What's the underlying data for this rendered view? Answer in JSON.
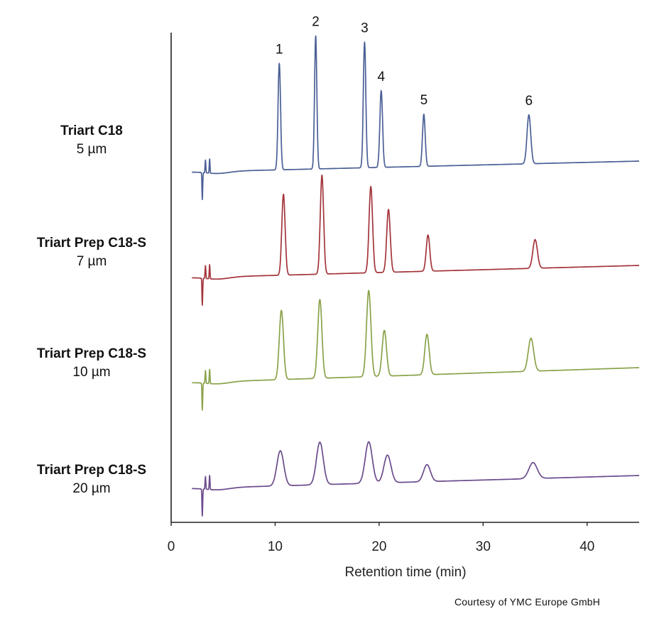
{
  "chart_data": {
    "type": "line",
    "xlabel": "Retention time (min)",
    "xlim": [
      0,
      45
    ],
    "xticks": [
      0,
      10,
      20,
      30,
      40
    ],
    "peak_labels": [
      {
        "label": "1",
        "x": 10.4
      },
      {
        "label": "2",
        "x": 13.9
      },
      {
        "label": "3",
        "x": 18.6
      },
      {
        "label": "4",
        "x": 20.2
      },
      {
        "label": "5",
        "x": 24.3
      },
      {
        "label": "6",
        "x": 34.4
      }
    ],
    "series": [
      {
        "name": "Triart C18",
        "particle_size": "5 µm",
        "color": "#4a5f96",
        "peaks": [
          {
            "x": 10.4,
            "height": 1.0,
            "width": 0.12
          },
          {
            "x": 13.9,
            "height": 1.25,
            "width": 0.11
          },
          {
            "x": 18.6,
            "height": 1.18,
            "width": 0.12
          },
          {
            "x": 20.2,
            "height": 0.72,
            "width": 0.13
          },
          {
            "x": 24.3,
            "height": 0.49,
            "width": 0.13
          },
          {
            "x": 34.4,
            "height": 0.46,
            "width": 0.18
          }
        ]
      },
      {
        "name": "Triart Prep C18-S",
        "particle_size": "7 µm",
        "color": "#a3343a",
        "peaks": [
          {
            "x": 10.8,
            "height": 0.76,
            "width": 0.16
          },
          {
            "x": 14.5,
            "height": 0.93,
            "width": 0.16
          },
          {
            "x": 19.2,
            "height": 0.81,
            "width": 0.17
          },
          {
            "x": 20.9,
            "height": 0.59,
            "width": 0.17
          },
          {
            "x": 24.7,
            "height": 0.34,
            "width": 0.17
          },
          {
            "x": 35.0,
            "height": 0.27,
            "width": 0.22
          }
        ]
      },
      {
        "name": "Triart Prep C18-S",
        "particle_size": "10 µm",
        "color": "#89a24a",
        "peaks": [
          {
            "x": 10.6,
            "height": 0.65,
            "width": 0.2
          },
          {
            "x": 14.3,
            "height": 0.74,
            "width": 0.2
          },
          {
            "x": 19.0,
            "height": 0.81,
            "width": 0.21
          },
          {
            "x": 20.5,
            "height": 0.43,
            "width": 0.21
          },
          {
            "x": 24.6,
            "height": 0.38,
            "width": 0.21
          },
          {
            "x": 34.6,
            "height": 0.31,
            "width": 0.26
          }
        ]
      },
      {
        "name": "Triart Prep C18-S",
        "particle_size": "20 µm",
        "color": "#6b4b8c",
        "peaks": [
          {
            "x": 10.5,
            "height": 0.33,
            "width": 0.33
          },
          {
            "x": 14.3,
            "height": 0.4,
            "width": 0.33
          },
          {
            "x": 19.0,
            "height": 0.39,
            "width": 0.34
          },
          {
            "x": 20.8,
            "height": 0.26,
            "width": 0.34
          },
          {
            "x": 24.6,
            "height": 0.16,
            "width": 0.33
          },
          {
            "x": 34.8,
            "height": 0.15,
            "width": 0.4
          }
        ]
      }
    ],
    "credit": "Courtesy of YMC Europe GmbH"
  }
}
